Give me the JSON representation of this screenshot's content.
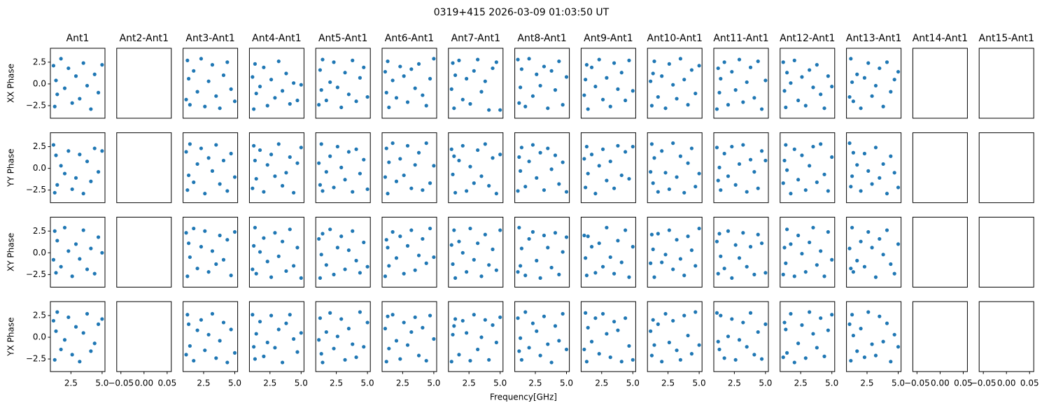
{
  "chart_data": {
    "type": "scatter",
    "title": "0319+415 2026-03-09 01:03:50 UT",
    "xlabel": "Frequency[GHz]",
    "row_labels": [
      "XX Phase",
      "YY Phase",
      "XY Phase",
      "YX Phase"
    ],
    "column_titles": [
      "Ant1",
      "Ant2-Ant1",
      "Ant3-Ant1",
      "Ant4-Ant1",
      "Ant5-Ant1",
      "Ant6-Ant1",
      "Ant7-Ant1",
      "Ant8-Ant1",
      "Ant9-Ant1",
      "Ant10-Ant1",
      "Ant11-Ant1",
      "Ant12-Ant1",
      "Ant13-Ant1",
      "Ant14-Ant1",
      "Ant15-Ant1"
    ],
    "color": "#1f77b4",
    "ylim": [
      -3.95,
      4.1
    ],
    "yticks": [
      {
        "value": -2.5,
        "label": "−2.5"
      },
      {
        "value": 0,
        "label": "0.0"
      },
      2.5
    ],
    "xlim": [
      0.85,
      5.23
    ],
    "xticks": [
      2.5,
      {
        "value": 5,
        "label": "5.0"
      }
    ],
    "empty_xlim": [
      -0.059,
      0.059
    ],
    "empty_xticks": [
      {
        "value": -0.05,
        "label": "−0.05"
      },
      {
        "value": 0,
        "label": "0.00"
      },
      0.05
    ],
    "x": [
      1.1,
      1.2,
      1.3,
      1.4,
      1.7,
      2.0,
      2.3,
      2.6,
      2.9,
      3.2,
      3.5,
      3.8,
      4.1,
      4.4,
      4.7,
      5.0
    ],
    "panels": [
      [
        [
          2.1,
          -2.6,
          0.4,
          -1.2,
          2.9,
          -0.5,
          1.8,
          -2.2,
          0.9,
          -1.7,
          2.4,
          -0.2,
          -2.9,
          1.1,
          -1.0,
          2.2
        ],
        null,
        [
          -1.8,
          2.7,
          0.6,
          -2.4,
          1.5,
          -0.9,
          2.9,
          -2.6,
          0.3,
          2.2,
          -1.4,
          -2.8,
          1.0,
          2.5,
          -0.6,
          -2.0
        ],
        [
          0.8,
          -2.9,
          2.3,
          -1.1,
          -0.3,
          1.9,
          -2.5,
          0.5,
          -1.6,
          2.6,
          -0.8,
          1.2,
          -2.3,
          0.1,
          -1.9,
          -0.1
        ],
        [
          -2.4,
          1.6,
          -0.7,
          2.8,
          -1.9,
          0.2,
          2.5,
          -0.4,
          -2.7,
          1.3,
          -1.2,
          2.7,
          -2.0,
          0.7,
          1.9,
          -1.5
        ],
        [
          1.4,
          -1.0,
          2.6,
          -2.7,
          0.4,
          -1.6,
          2.0,
          0.9,
          -2.1,
          1.7,
          -0.5,
          2.3,
          -1.3,
          -2.5,
          0.6,
          2.9
        ],
        [
          -0.6,
          2.4,
          -2.8,
          1.0,
          2.7,
          -1.8,
          0.6,
          -2.3,
          1.5,
          2.8,
          -0.9,
          0.3,
          -3.0,
          1.8,
          2.5,
          -3.0
        ],
        [
          2.8,
          -2.2,
          -0.4,
          1.7,
          -2.6,
          2.9,
          -1.4,
          1.1,
          -0.2,
          2.0,
          -2.8,
          1.5,
          -0.7,
          2.6,
          -2.4,
          0.8
        ],
        [
          -1.3,
          0.5,
          2.2,
          -2.9,
          1.9,
          -0.3,
          2.8,
          -1.8,
          0.7,
          -2.6,
          2.4,
          -0.6,
          1.3,
          -1.9,
          2.7,
          -0.8
        ],
        [
          0.3,
          -2.5,
          1.2,
          2.6,
          -1.5,
          0.9,
          -2.8,
          2.3,
          -0.1,
          -1.7,
          2.9,
          0.5,
          -2.4,
          1.6,
          -1.1,
          2.1
        ],
        [
          -2.9,
          1.8,
          -1.0,
          0.6,
          2.5,
          -2.4,
          1.4,
          -0.7,
          2.8,
          -2.1,
          0.2,
          1.9,
          -1.6,
          2.6,
          -2.9,
          0.4
        ],
        [
          2.5,
          -0.8,
          -2.7,
          1.3,
          0.1,
          2.7,
          -1.9,
          0.8,
          -2.5,
          1.6,
          -0.4,
          2.2,
          -1.2,
          -2.8,
          0.9,
          -0.3
        ],
        [
          -1.5,
          2.9,
          0.2,
          -2.0,
          1.1,
          -2.8,
          0.7,
          2.4,
          -1.4,
          -0.2,
          1.8,
          -2.6,
          2.5,
          -0.9,
          0.5,
          1.4
        ],
        null,
        null
      ],
      [
        [
          2.7,
          -2.8,
          1.5,
          -1.9,
          0.3,
          -0.6,
          2.0,
          -2.4,
          -1.1,
          1.6,
          -2.9,
          0.8,
          -1.5,
          2.3,
          -0.4,
          2.0
        ],
        null,
        [
          1.9,
          -2.5,
          -0.8,
          2.8,
          -1.6,
          0.5,
          2.3,
          -2.9,
          1.2,
          -0.3,
          2.7,
          -1.8,
          0.9,
          -2.6,
          1.7,
          -1.0
        ],
        [
          -2.3,
          2.6,
          0.9,
          -1.2,
          2.1,
          -2.7,
          0.4,
          1.6,
          -0.9,
          2.8,
          -2.0,
          -0.5,
          1.3,
          -2.8,
          0.6,
          2.4
        ],
        [
          0.6,
          -1.9,
          2.8,
          -2.6,
          -0.4,
          1.4,
          -2.2,
          2.5,
          0.1,
          -1.3,
          1.9,
          -2.7,
          2.2,
          -0.6,
          1.0,
          -2.4
        ],
        [
          -1.0,
          2.3,
          -2.9,
          0.7,
          2.9,
          -1.5,
          1.1,
          -0.8,
          2.6,
          -2.3,
          0.4,
          1.8,
          -2.5,
          2.9,
          -1.7,
          0.3
        ],
        [
          2.2,
          -0.7,
          1.4,
          -2.8,
          0.9,
          2.6,
          -2.6,
          0.2,
          -1.7,
          2.1,
          -0.9,
          2.8,
          -2.0,
          1.2,
          -2.9,
          1.6
        ],
        [
          -2.6,
          1.3,
          -0.3,
          2.4,
          -2.1,
          0.8,
          2.7,
          -1.1,
          1.8,
          -2.5,
          2.3,
          -0.1,
          1.5,
          -1.8,
          0.7,
          -2.7
        ],
        [
          1.1,
          -2.2,
          2.5,
          -0.6,
          1.6,
          -2.9,
          0.3,
          2.2,
          -1.4,
          0.8,
          -2.3,
          2.6,
          -0.8,
          1.9,
          -1.2,
          2.5
        ],
        [
          -0.4,
          2.8,
          -1.7,
          1.2,
          -2.7,
          2.0,
          -0.5,
          -2.4,
          2.9,
          -1.0,
          1.4,
          -2.8,
          0.6,
          2.3,
          -2.1,
          -0.6
        ],
        [
          2.4,
          -1.4,
          0.1,
          -2.5,
          1.7,
          -0.9,
          2.5,
          -1.9,
          0.5,
          2.7,
          -2.7,
          1.0,
          -0.4,
          -2.3,
          2.0,
          0.9
        ],
        [
          -1.7,
          0.9,
          2.7,
          -0.2,
          -2.9,
          2.2,
          -1.3,
          1.5,
          -2.5,
          0.3,
          2.5,
          -1.6,
          2.8,
          -0.7,
          -2.6,
          1.3
        ],
        [
          2.9,
          -2.1,
          -0.9,
          1.8,
          0.4,
          -2.6,
          1.7,
          -0.3,
          -1.8,
          2.4,
          -1.1,
          0.5,
          -2.9,
          1.4,
          -0.5,
          -2.2
        ],
        null,
        null
      ],
      [
        [
          -0.8,
          2.5,
          -2.3,
          1.4,
          -1.6,
          2.9,
          0.2,
          -2.7,
          1.0,
          -0.7,
          2.6,
          -1.9,
          0.5,
          -2.4,
          1.8,
          0.0
        ],
        null,
        [
          2.3,
          -2.7,
          1.1,
          -0.5,
          2.8,
          -1.8,
          0.7,
          2.5,
          -2.2,
          0.2,
          -1.3,
          2.0,
          -0.8,
          1.5,
          -2.6,
          2.4
        ],
        [
          -1.9,
          0.8,
          2.9,
          -2.4,
          0.1,
          1.7,
          -1.0,
          -2.8,
          2.3,
          -0.4,
          1.3,
          -2.1,
          2.7,
          -1.5,
          0.6,
          -2.9
        ],
        [
          1.6,
          -2.9,
          -0.2,
          2.2,
          -1.4,
          2.7,
          -2.5,
          0.6,
          1.9,
          -1.9,
          0.3,
          2.5,
          -0.9,
          -2.3,
          1.2,
          -1.6
        ],
        [
          -2.7,
          1.5,
          0.6,
          -1.5,
          2.4,
          -0.6,
          1.9,
          -2.4,
          0.8,
          2.6,
          -2.0,
          -0.3,
          1.6,
          -1.2,
          2.8,
          -0.5
        ],
        [
          0.9,
          -1.3,
          2.6,
          -2.9,
          1.3,
          0.0,
          -2.2,
          2.8,
          -0.8,
          1.1,
          -2.7,
          2.1,
          -1.4,
          0.4,
          -2.0,
          2.6
        ],
        [
          -2.2,
          2.9,
          -1.5,
          0.5,
          -2.6,
          1.6,
          2.4,
          -0.9,
          -2.9,
          2.0,
          0.6,
          -1.7,
          2.3,
          -2.5,
          0.1,
          1.8
        ],
        [
          2.0,
          -0.6,
          -2.6,
          1.9,
          0.7,
          -2.3,
          1.1,
          -1.6,
          2.9,
          -0.5,
          -2.4,
          1.4,
          -1.1,
          2.6,
          -2.8,
          0.7
        ],
        [
          -1.2,
          2.1,
          0.4,
          -2.8,
          2.2,
          -1.1,
          -0.2,
          2.6,
          -1.9,
          1.5,
          -0.7,
          -2.6,
          1.9,
          0.3,
          -1.5,
          2.8
        ],
        [
          1.3,
          -2.4,
          2.2,
          -0.4,
          -1.8,
          2.5,
          -2.9,
          0.9,
          -0.6,
          2.3,
          -1.6,
          0.7,
          -2.5,
          2.1,
          1.1,
          -2.3
        ],
        [
          -2.5,
          0.6,
          -1.2,
          2.7,
          1.0,
          -2.7,
          2.0,
          -0.1,
          -2.2,
          1.2,
          2.9,
          -1.4,
          0.2,
          -2.7,
          2.4,
          -0.8
        ],
        [
          0.5,
          -1.8,
          2.9,
          -2.2,
          -0.9,
          1.3,
          -1.6,
          2.4,
          0.6,
          -2.8,
          1.6,
          -0.2,
          2.6,
          -1.3,
          -2.4,
          1.0
        ],
        null,
        null
      ],
      [
        [
          1.9,
          -2.6,
          0.7,
          2.9,
          -1.4,
          -0.3,
          2.3,
          -2.0,
          1.2,
          -2.8,
          0.5,
          2.7,
          -1.6,
          -0.7,
          1.5,
          2.1
        ],
        null,
        [
          -2.0,
          2.6,
          1.5,
          -1.0,
          -2.7,
          0.8,
          2.0,
          -1.5,
          0.3,
          2.7,
          -2.4,
          -0.4,
          1.7,
          -2.9,
          0.9,
          -1.8
        ],
        [
          2.6,
          -1.1,
          -2.5,
          0.4,
          1.8,
          -2.2,
          -0.6,
          2.5,
          -1.2,
          0.9,
          -2.9,
          1.6,
          2.6,
          -0.2,
          -1.7,
          0.5
        ],
        [
          -0.3,
          2.2,
          -1.9,
          -2.9,
          0.6,
          2.8,
          -1.3,
          0.1,
          2.1,
          -2.6,
          1.0,
          -0.8,
          -2.3,
          2.9,
          -1.1,
          1.7
        ],
        [
          1.0,
          -2.8,
          2.4,
          -1.3,
          2.6,
          -0.4,
          -2.5,
          1.7,
          -0.9,
          0.6,
          2.3,
          -2.1,
          1.1,
          -2.7,
          2.5,
          -0.2
        ],
        [
          -2.8,
          0.3,
          1.3,
          2.1,
          -2.0,
          1.9,
          0.5,
          -2.7,
          2.6,
          -1.4,
          0.0,
          2.0,
          -2.6,
          1.4,
          -0.6,
          2.3
        ],
        [
          2.2,
          -1.6,
          -0.1,
          -2.6,
          2.9,
          -1.2,
          1.6,
          0.7,
          -2.1,
          2.4,
          -0.8,
          -2.9,
          1.3,
          -0.4,
          2.7,
          -1.4
        ],
        [
          -1.4,
          2.8,
          -2.8,
          1.1,
          -0.5,
          2.2,
          -1.9,
          2.7,
          0.4,
          -2.3,
          1.8,
          0.8,
          -2.8,
          2.2,
          -1.0,
          -2.6
        ],
        [
          0.7,
          -2.1,
          2.0,
          -0.9,
          1.5,
          -2.8,
          2.7,
          -0.6,
          1.9,
          -1.5,
          -2.6,
          2.5,
          0.2,
          -1.9,
          2.9,
          -0.9
        ],
        [
          2.8,
          -0.5,
          -1.4,
          2.5,
          -2.4,
          0.1,
          2.1,
          -2.6,
          -0.3,
          1.7,
          -1.1,
          2.8,
          -2.0,
          0.6,
          -2.5,
          1.5
        ],
        [
          -2.3,
          1.7,
          0.9,
          -1.8,
          2.7,
          -2.9,
          -0.7,
          1.4,
          -2.4,
          2.9,
          0.4,
          -1.2,
          2.2,
          -2.2,
          0.8,
          2.6
        ],
        [
          1.5,
          -2.7,
          2.6,
          0.2,
          -1.6,
          1.0,
          -2.3,
          2.9,
          -0.8,
          -2.1,
          2.4,
          -0.5,
          1.6,
          -2.8,
          0.3,
          -1.1
        ],
        null,
        null
      ]
    ]
  }
}
